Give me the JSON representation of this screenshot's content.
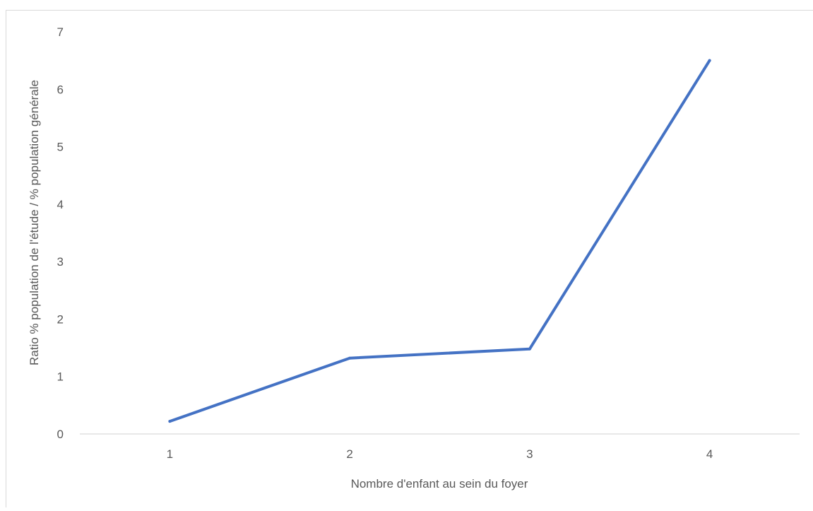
{
  "chart_data": {
    "type": "line",
    "title": "",
    "xlabel": "Nombre d'enfant au sein du foyer",
    "ylabel": "Ratio % population de l'étude / % population générale",
    "x": [
      1,
      2,
      3,
      4
    ],
    "categories": [
      "1",
      "2",
      "3",
      "4"
    ],
    "series": [
      {
        "values": [
          0.22,
          1.32,
          1.48,
          6.5
        ]
      }
    ],
    "ylim": [
      0,
      7
    ],
    "yticks": [
      "0",
      "1",
      "2",
      "3",
      "4",
      "5",
      "6",
      "7"
    ],
    "grid": false,
    "legend": "none",
    "colors": {
      "line": "#4472c4",
      "axis": "#d9d9d9",
      "text": "#595959"
    }
  }
}
